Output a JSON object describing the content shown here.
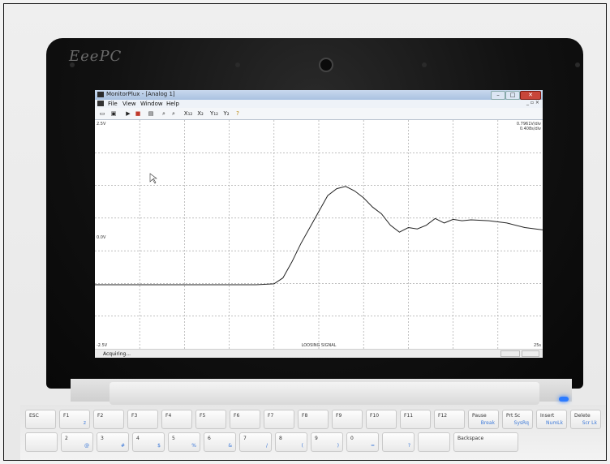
{
  "laptop": {
    "brand": "EeePC"
  },
  "window": {
    "title": "MonitorPlux - [Analog 1]",
    "controls": {
      "minimize": "–",
      "maximize": "□",
      "close": "✕"
    },
    "mdi_controls": "_ ▫ ×"
  },
  "menu": [
    "File",
    "View",
    "Window",
    "Help"
  ],
  "toolbar": [
    "▭",
    "▣",
    "▶",
    "■",
    "▤",
    "⌕",
    "⌕",
    "X₁₂",
    "X₂",
    "Y₁₂",
    "Y₂",
    "?"
  ],
  "plot": {
    "top_left_label": "2.5V",
    "top_right_line1": "0.7961V/div",
    "top_right_line2": "0.408s/div",
    "mid_label": "0.0V",
    "bottom_left_label": "-2.5V",
    "bottom_right_label": "25s",
    "bottom_center_label": "LOOSING SIGNAL",
    "signal_color": "#222222",
    "grid_color": "#9a9a9a",
    "center_label_color": "#c0392b"
  },
  "chart_data": {
    "type": "line",
    "series": [
      {
        "values": [
          [
            0,
            -1.1
          ],
          [
            1,
            -1.1
          ],
          [
            2,
            -1.1
          ],
          [
            3,
            -1.1
          ],
          [
            4,
            -1.1
          ],
          [
            5,
            -1.1
          ],
          [
            6,
            -1.1
          ],
          [
            7,
            -1.1
          ],
          [
            8,
            -1.1
          ],
          [
            9,
            -1.1
          ],
          [
            10,
            -1.08
          ],
          [
            10.5,
            -0.95
          ],
          [
            11,
            -0.6
          ],
          [
            11.5,
            -0.2
          ],
          [
            12,
            0.15
          ],
          [
            12.5,
            0.5
          ],
          [
            13,
            0.85
          ],
          [
            13.5,
            1.0
          ],
          [
            14,
            1.05
          ],
          [
            14.5,
            0.95
          ],
          [
            15,
            0.8
          ],
          [
            15.5,
            0.6
          ],
          [
            16,
            0.45
          ],
          [
            16.5,
            0.2
          ],
          [
            17,
            0.05
          ],
          [
            17.5,
            0.15
          ],
          [
            18,
            0.12
          ],
          [
            18.5,
            0.2
          ],
          [
            19,
            0.35
          ],
          [
            19.5,
            0.25
          ],
          [
            20,
            0.33
          ],
          [
            20.5,
            0.3
          ],
          [
            21,
            0.32
          ],
          [
            22,
            0.3
          ],
          [
            23,
            0.25
          ],
          [
            24,
            0.15
          ],
          [
            25,
            0.1
          ]
        ]
      }
    ],
    "xlim": [
      0,
      25
    ],
    "ylim": [
      -2.5,
      2.5
    ],
    "grid": true
  },
  "status": {
    "text": "Acquiring..."
  },
  "keyboard_rows": [
    [
      {
        "main": "ESC",
        "sub": ""
      },
      {
        "main": "F1",
        "sub": "z"
      },
      {
        "main": "F2",
        "sub": ""
      },
      {
        "main": "F3",
        "sub": ""
      },
      {
        "main": "F4",
        "sub": ""
      },
      {
        "main": "F5",
        "sub": ""
      },
      {
        "main": "F6",
        "sub": ""
      },
      {
        "main": "F7",
        "sub": ""
      },
      {
        "main": "F8",
        "sub": ""
      },
      {
        "main": "F9",
        "sub": ""
      },
      {
        "main": "F10",
        "sub": ""
      },
      {
        "main": "F11",
        "sub": ""
      },
      {
        "main": "F12",
        "sub": ""
      },
      {
        "main": "Pause",
        "sub": "Break"
      },
      {
        "main": "Prt Sc",
        "sub": "SysRq"
      },
      {
        "main": "Insert",
        "sub": "NumLk"
      },
      {
        "main": "Delete",
        "sub": "Scr Lk"
      }
    ],
    [
      {
        "main": "",
        "sub": ""
      },
      {
        "main": "2",
        "sub": "@"
      },
      {
        "main": "3",
        "sub": "#"
      },
      {
        "main": "4",
        "sub": "$"
      },
      {
        "main": "5",
        "sub": "%"
      },
      {
        "main": "6",
        "sub": "&"
      },
      {
        "main": "7",
        "sub": "/"
      },
      {
        "main": "8",
        "sub": "("
      },
      {
        "main": "9",
        "sub": ")"
      },
      {
        "main": "0",
        "sub": "="
      },
      {
        "main": "",
        "sub": "?"
      },
      {
        "main": "",
        "sub": ""
      },
      {
        "main": "Backspace",
        "sub": ""
      }
    ]
  ]
}
